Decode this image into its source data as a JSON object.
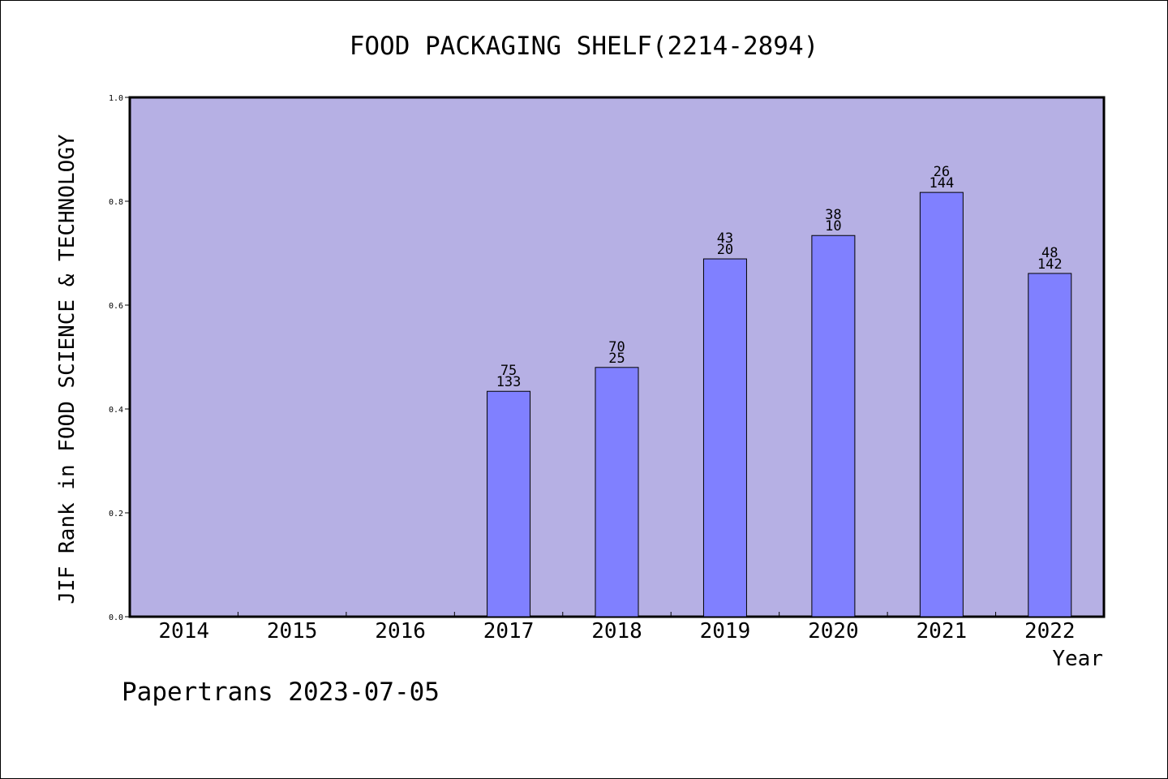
{
  "chart_data": {
    "type": "bar",
    "title": "FOOD PACKAGING SHELF(2214-2894)",
    "xlabel": "Year",
    "ylabel": "JIF Rank in FOOD SCIENCE & TECHNOLOGY",
    "categories": [
      "2014",
      "2015",
      "2016",
      "2017",
      "2018",
      "2019",
      "2020",
      "2021",
      "2022"
    ],
    "values": [
      null,
      null,
      null,
      0.434,
      0.48,
      0.689,
      0.734,
      0.817,
      0.661
    ],
    "label_top": [
      "",
      "",
      "",
      "75",
      "70",
      "43",
      "38",
      "26",
      "48"
    ],
    "label_bottom": [
      "",
      "",
      "",
      "133",
      "25",
      "20",
      "10",
      "144",
      "142"
    ],
    "ylim": [
      0,
      1.0
    ],
    "yticks": [
      "0.0",
      "0.2",
      "0.4",
      "0.6",
      "0.8",
      "1.0"
    ],
    "grid": false,
    "colors": {
      "plot_background": "#b6b0e4",
      "bar_fill": "#8080ff",
      "bar_stroke": "#000000"
    }
  },
  "footer": {
    "watermark": "Papertrans 2023-07-05"
  }
}
